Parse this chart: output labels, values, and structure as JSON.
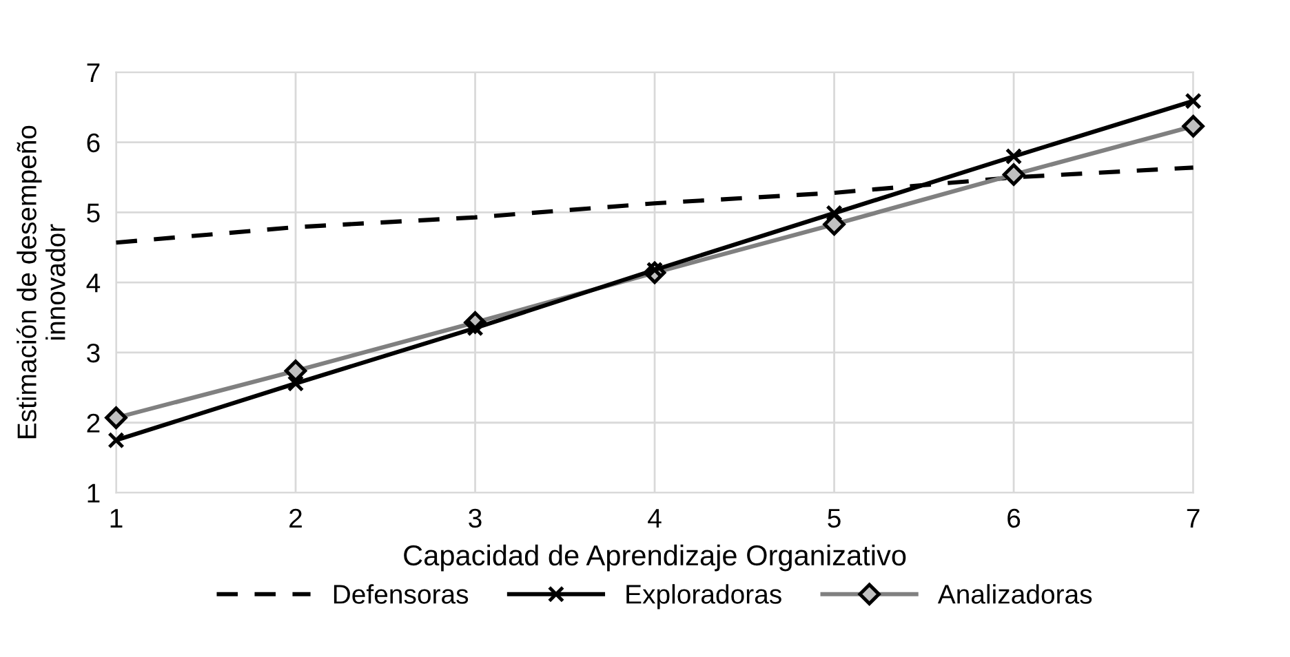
{
  "chart_data": {
    "type": "line",
    "xlabel": "Capacidad de Aprendizaje Organizativo",
    "ylabel": "Estimación de desempeño\ninnovador",
    "x": [
      1,
      2,
      3,
      4,
      5,
      6,
      7
    ],
    "series": [
      {
        "name": "Defensoras",
        "color": "#000000",
        "line_style": "dashed",
        "marker": "none",
        "values": [
          4.57,
          4.79,
          4.93,
          5.13,
          5.28,
          5.5,
          5.64
        ]
      },
      {
        "name": "Exploradoras",
        "color": "#000000",
        "line_style": "solid",
        "marker": "cross",
        "values": [
          1.75,
          2.56,
          3.35,
          4.18,
          4.99,
          5.8,
          6.59
        ]
      },
      {
        "name": "Analizadoras",
        "color": "#808080",
        "line_style": "solid",
        "marker": "diamond",
        "values": [
          2.07,
          2.74,
          3.43,
          4.14,
          4.83,
          5.54,
          6.23
        ]
      }
    ],
    "xlim": [
      1,
      7
    ],
    "xticks": [
      1,
      2,
      3,
      4,
      5,
      6,
      7
    ],
    "ylim": [
      1,
      7
    ],
    "yticks": [
      1,
      2,
      3,
      4,
      5,
      6,
      7
    ],
    "grid": true,
    "legend": "bottom"
  }
}
